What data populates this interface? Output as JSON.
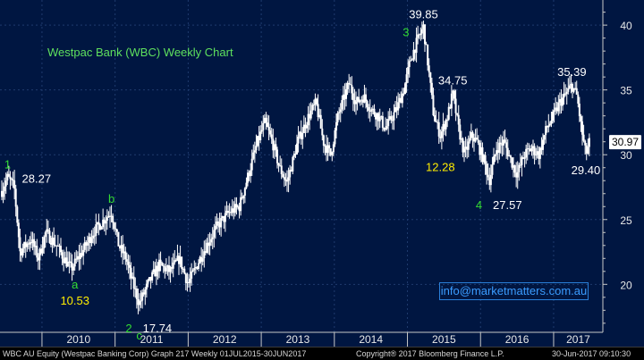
{
  "colors": {
    "background": "#001641",
    "candle": "#ffffff",
    "grid": "#1f3b6e",
    "title": "#5ee05e",
    "wave_green": "#33dd33",
    "wave_yellow": "#ffee00",
    "last_price_box": "#ffffff",
    "email": "#3b9cff"
  },
  "email": "info@marketmatters.com.au",
  "footer": {
    "left": "WBC AU Equity (Westpac Banking Corp) Graph 217  Weekly 01JUL2015-30JUN2017",
    "center": "Copyright® 2017 Bloomberg Finance L.P.",
    "right": "30-Jun-2017 09:10:30"
  },
  "chart_data": {
    "type": "candlestick",
    "title": "Westpac Bank (WBC) Weekly Chart",
    "x_tick_labels": [
      "2010",
      "2011",
      "2012",
      "2013",
      "2014",
      "2015",
      "2016",
      "2017"
    ],
    "y_tick_labels": [
      "20",
      "25",
      "30",
      "35",
      "40"
    ],
    "ylim": [
      16.3,
      41.8
    ],
    "grid": "dotted",
    "last_price": 30.97,
    "anchors": [
      {
        "t": 2009.45,
        "v": 27.2
      },
      {
        "t": 2009.53,
        "v": 28.27
      },
      {
        "t": 2009.62,
        "v": 27.5
      },
      {
        "t": 2009.7,
        "v": 22.5
      },
      {
        "t": 2009.85,
        "v": 23.5
      },
      {
        "t": 2009.95,
        "v": 22.0
      },
      {
        "t": 2010.05,
        "v": 24.0
      },
      {
        "t": 2010.2,
        "v": 23.0
      },
      {
        "t": 2010.3,
        "v": 22.0
      },
      {
        "t": 2010.4,
        "v": 21.2
      },
      {
        "t": 2010.55,
        "v": 22.5
      },
      {
        "t": 2010.7,
        "v": 24.0
      },
      {
        "t": 2010.85,
        "v": 25.0
      },
      {
        "t": 2010.95,
        "v": 25.6
      },
      {
        "t": 2011.05,
        "v": 23.0
      },
      {
        "t": 2011.15,
        "v": 22.0
      },
      {
        "t": 2011.22,
        "v": 20.5
      },
      {
        "t": 2011.33,
        "v": 18.5
      },
      {
        "t": 2011.45,
        "v": 20.0
      },
      {
        "t": 2011.6,
        "v": 21.5
      },
      {
        "t": 2011.75,
        "v": 21.0
      },
      {
        "t": 2011.88,
        "v": 22.0
      },
      {
        "t": 2012.0,
        "v": 20.0
      },
      {
        "t": 2012.12,
        "v": 21.5
      },
      {
        "t": 2012.25,
        "v": 23.0
      },
      {
        "t": 2012.4,
        "v": 24.5
      },
      {
        "t": 2012.55,
        "v": 25.5
      },
      {
        "t": 2012.7,
        "v": 26.0
      },
      {
        "t": 2012.85,
        "v": 29.0
      },
      {
        "t": 2012.95,
        "v": 31.0
      },
      {
        "t": 2013.05,
        "v": 32.5
      },
      {
        "t": 2013.15,
        "v": 31.0
      },
      {
        "t": 2013.25,
        "v": 29.0
      },
      {
        "t": 2013.35,
        "v": 27.8
      },
      {
        "t": 2013.5,
        "v": 31.0
      },
      {
        "t": 2013.65,
        "v": 33.0
      },
      {
        "t": 2013.75,
        "v": 34.0
      },
      {
        "t": 2013.85,
        "v": 31.0
      },
      {
        "t": 2013.95,
        "v": 30.0
      },
      {
        "t": 2014.05,
        "v": 33.0
      },
      {
        "t": 2014.2,
        "v": 35.5
      },
      {
        "t": 2014.3,
        "v": 34.0
      },
      {
        "t": 2014.4,
        "v": 34.5
      },
      {
        "t": 2014.5,
        "v": 33.5
      },
      {
        "t": 2014.6,
        "v": 33.0
      },
      {
        "t": 2014.7,
        "v": 32.0
      },
      {
        "t": 2014.85,
        "v": 33.5
      },
      {
        "t": 2014.95,
        "v": 35.0
      },
      {
        "t": 2015.05,
        "v": 37.5
      },
      {
        "t": 2015.15,
        "v": 39.0
      },
      {
        "t": 2015.22,
        "v": 39.85
      },
      {
        "t": 2015.28,
        "v": 37.0
      },
      {
        "t": 2015.36,
        "v": 33.0
      },
      {
        "t": 2015.45,
        "v": 31.5
      },
      {
        "t": 2015.55,
        "v": 33.0
      },
      {
        "t": 2015.62,
        "v": 34.75
      },
      {
        "t": 2015.7,
        "v": 32.0
      },
      {
        "t": 2015.78,
        "v": 30.0
      },
      {
        "t": 2015.88,
        "v": 31.5
      },
      {
        "t": 2015.95,
        "v": 31.0
      },
      {
        "t": 2016.05,
        "v": 29.5
      },
      {
        "t": 2016.12,
        "v": 28.0
      },
      {
        "t": 2016.22,
        "v": 30.5
      },
      {
        "t": 2016.32,
        "v": 31.0
      },
      {
        "t": 2016.42,
        "v": 29.5
      },
      {
        "t": 2016.5,
        "v": 28.5
      },
      {
        "t": 2016.6,
        "v": 30.0
      },
      {
        "t": 2016.7,
        "v": 30.5
      },
      {
        "t": 2016.8,
        "v": 30.0
      },
      {
        "t": 2016.9,
        "v": 32.0
      },
      {
        "t": 2017.0,
        "v": 33.0
      },
      {
        "t": 2017.08,
        "v": 34.0
      },
      {
        "t": 2017.15,
        "v": 34.5
      },
      {
        "t": 2017.25,
        "v": 35.39
      },
      {
        "t": 2017.32,
        "v": 34.5
      },
      {
        "t": 2017.38,
        "v": 32.0
      },
      {
        "t": 2017.44,
        "v": 30.0
      },
      {
        "t": 2017.49,
        "v": 30.97
      }
    ],
    "annotations": [
      {
        "text": "1",
        "t": 2009.53,
        "v": 28.27,
        "pos": "above",
        "color": "green"
      },
      {
        "text": "28.27",
        "t": 2009.53,
        "v": 28.27,
        "pos": "right",
        "color": "white"
      },
      {
        "text": "b",
        "t": 2010.95,
        "v": 25.6,
        "pos": "above",
        "color": "green"
      },
      {
        "text": "a",
        "t": 2010.45,
        "v": 21.2,
        "pos": "below",
        "color": "green"
      },
      {
        "text": "10.53",
        "t": 2010.45,
        "v": 21.2,
        "pos": "below2",
        "color": "yellow"
      },
      {
        "text": "2",
        "t": 2011.33,
        "v": 18.5,
        "pos": "below-left",
        "color": "green"
      },
      {
        "text": "17.74",
        "t": 2011.33,
        "v": 18.5,
        "pos": "below-right",
        "color": "white"
      },
      {
        "text": "c",
        "t": 2011.33,
        "v": 18.5,
        "pos": "below2",
        "color": "green"
      },
      {
        "text": "3",
        "t": 2015.22,
        "v": 39.85,
        "pos": "left",
        "color": "green"
      },
      {
        "text": "39.85",
        "t": 2015.22,
        "v": 39.85,
        "pos": "above",
        "color": "white"
      },
      {
        "text": "34.75",
        "t": 2015.62,
        "v": 34.75,
        "pos": "above",
        "color": "white"
      },
      {
        "text": "12.28",
        "t": 2015.45,
        "v": 31.5,
        "pos": "below2",
        "color": "yellow"
      },
      {
        "text": "4",
        "t": 2016.12,
        "v": 28.0,
        "pos": "below-left",
        "color": "green"
      },
      {
        "text": "27.57",
        "t": 2016.12,
        "v": 28.0,
        "pos": "below-right",
        "color": "white"
      },
      {
        "text": "35.39",
        "t": 2017.25,
        "v": 35.39,
        "pos": "above",
        "color": "white"
      },
      {
        "text": "29.40",
        "t": 2017.44,
        "v": 30.0,
        "pos": "below",
        "color": "white"
      }
    ]
  }
}
